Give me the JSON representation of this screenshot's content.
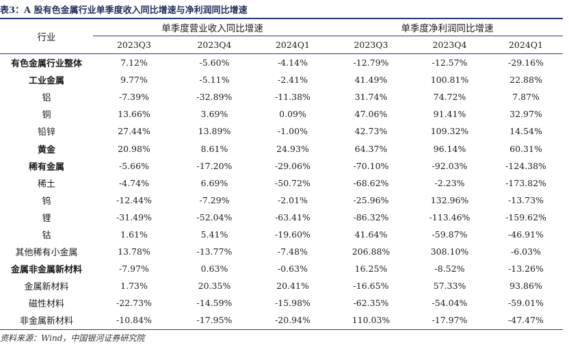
{
  "title": "表3：A 股有色金属行业单季度收入同比增速与净利润同比增速",
  "header": {
    "industry": "行业",
    "group1": "单季度营业收入同比增速",
    "group2": "单季度净利润同比增速",
    "periods": [
      "2023Q3",
      "2023Q4",
      "2024Q1"
    ]
  },
  "rows": [
    {
      "name": "有色金属行业整体",
      "bold": true,
      "values": [
        "7.12%",
        "-5.60%",
        "-4.14%",
        "-12.79%",
        "-12.57%",
        "-29.16%"
      ]
    },
    {
      "name": "工业金属",
      "bold": true,
      "values": [
        "9.77%",
        "-5.11%",
        "-2.41%",
        "41.49%",
        "100.81%",
        "22.88%"
      ]
    },
    {
      "name": "铝",
      "bold": false,
      "values": [
        "-7.39%",
        "-32.89%",
        "-11.38%",
        "31.74%",
        "74.72%",
        "7.87%"
      ]
    },
    {
      "name": "铜",
      "bold": false,
      "values": [
        "13.66%",
        "3.69%",
        "0.09%",
        "47.06%",
        "91.41%",
        "32.97%"
      ]
    },
    {
      "name": "铅锌",
      "bold": false,
      "values": [
        "27.44%",
        "13.89%",
        "-1.00%",
        "42.73%",
        "109.32%",
        "14.54%"
      ]
    },
    {
      "name": "黄金",
      "bold": true,
      "values": [
        "20.98%",
        "8.61%",
        "24.93%",
        "64.37%",
        "96.14%",
        "60.31%"
      ]
    },
    {
      "name": "稀有金属",
      "bold": true,
      "values": [
        "-5.66%",
        "-17.20%",
        "-29.06%",
        "-70.10%",
        "-92.03%",
        "-124.38%"
      ]
    },
    {
      "name": "稀土",
      "bold": false,
      "values": [
        "-4.74%",
        "6.69%",
        "-50.72%",
        "-68.62%",
        "-2.23%",
        "-173.82%"
      ]
    },
    {
      "name": "钨",
      "bold": false,
      "values": [
        "-12.44%",
        "-7.29%",
        "-2.01%",
        "-25.96%",
        "132.96%",
        "-13.73%"
      ]
    },
    {
      "name": "锂",
      "bold": false,
      "values": [
        "-31.49%",
        "-52.04%",
        "-63.41%",
        "-86.32%",
        "-113.46%",
        "-159.62%"
      ]
    },
    {
      "name": "钴",
      "bold": false,
      "values": [
        "1.61%",
        "5.41%",
        "-19.60%",
        "41.64%",
        "-59.87%",
        "-46.91%"
      ]
    },
    {
      "name": "其他稀有小金属",
      "bold": false,
      "values": [
        "13.78%",
        "-13.77%",
        "-7.48%",
        "206.88%",
        "308.10%",
        "-6.03%"
      ]
    },
    {
      "name": "金属非金属新材料",
      "bold": true,
      "values": [
        "-7.97%",
        "0.63%",
        "-0.63%",
        "16.25%",
        "-8.52%",
        "-13.26%"
      ]
    },
    {
      "name": "金属新材料",
      "bold": false,
      "values": [
        "1.73%",
        "20.35%",
        "20.41%",
        "-16.65%",
        "57.33%",
        "93.86%"
      ]
    },
    {
      "name": "磁性材料",
      "bold": false,
      "values": [
        "-22.73%",
        "-14.59%",
        "-15.98%",
        "-62.35%",
        "-54.04%",
        "-59.01%"
      ]
    },
    {
      "name": "非金属新材料",
      "bold": false,
      "values": [
        "-10.84%",
        "-17.95%",
        "-20.94%",
        "110.03%",
        "-17.97%",
        "-47.47%"
      ]
    }
  ],
  "source": "资料来源：Wind，中国银河证券研究院"
}
